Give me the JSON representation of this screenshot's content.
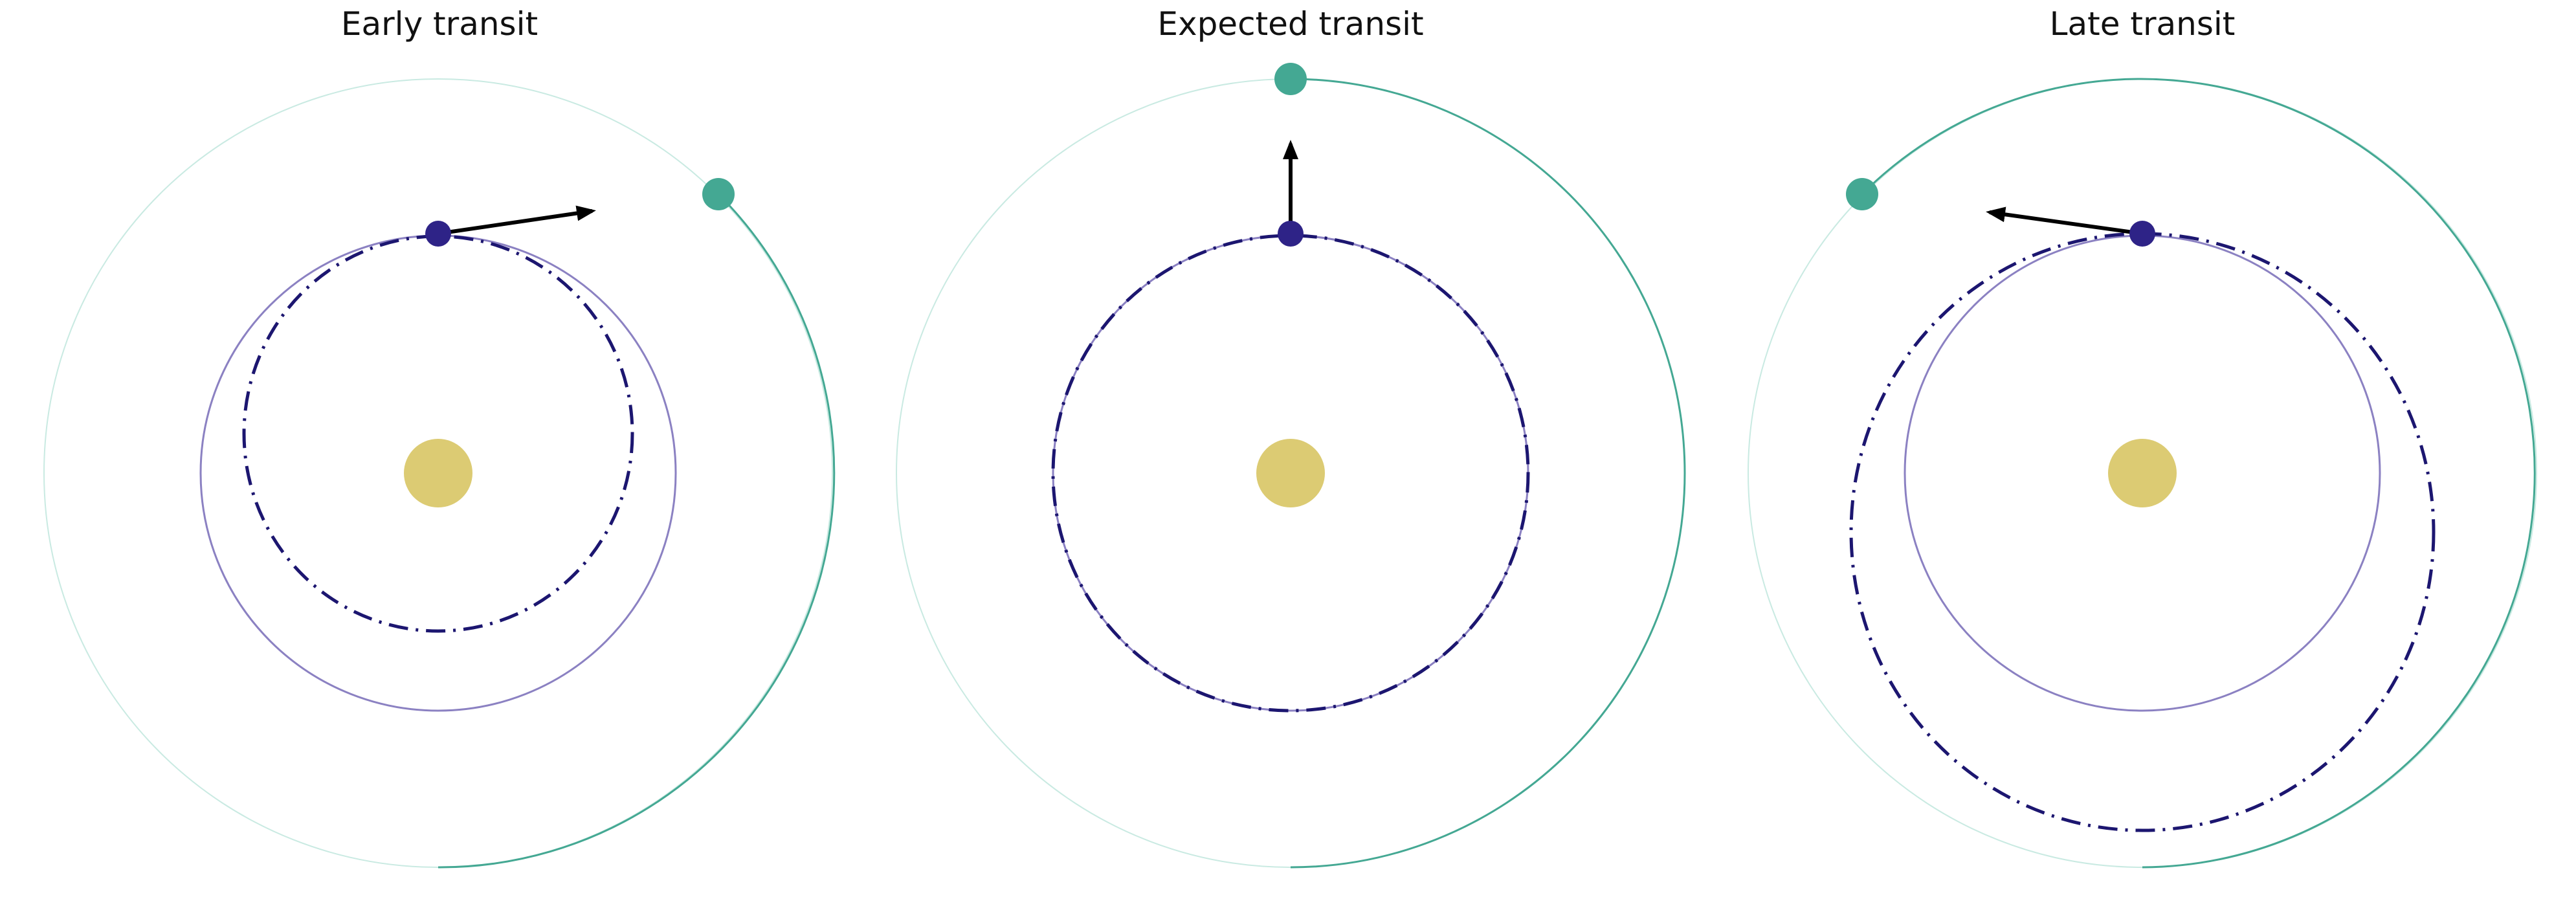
{
  "panels": [
    {
      "title": "Early transit"
    },
    {
      "title": "Expected transit"
    },
    {
      "title": "Late transit"
    }
  ],
  "colors": {
    "star": "#dccb73",
    "inner_planet": "#2e2387",
    "inner_orbit": "#7a6fb8",
    "inner_orbit_faded": "#cfcce6",
    "perturbed_orbit": "#1c1670",
    "outer_planet": "#44a893",
    "outer_orbit": "#44a893",
    "outer_orbit_faded": "#bfe6dc",
    "arrow": "#000000"
  }
}
